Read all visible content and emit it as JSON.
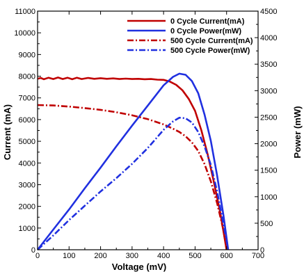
{
  "chart_data": {
    "type": "line",
    "title": "",
    "xlabel": "Voltage (mV)",
    "ylabel": "Current (mA)",
    "y2label": "Power (mW)",
    "xlim": [
      0,
      700
    ],
    "ylim": [
      0,
      11000
    ],
    "y2lim": [
      0,
      4500
    ],
    "x_ticks": [
      0,
      100,
      200,
      300,
      400,
      500,
      600,
      700
    ],
    "y_ticks": [
      0,
      1000,
      2000,
      3000,
      4000,
      5000,
      6000,
      7000,
      8000,
      9000,
      10000,
      11000
    ],
    "y2_ticks": [
      0,
      500,
      1000,
      1500,
      2000,
      2500,
      3000,
      3500,
      4000,
      4500
    ],
    "grid": false,
    "legend_position": "top-right",
    "series": [
      {
        "name": "0 Cycle Current(mA)",
        "axis": "left",
        "color": "#c00000",
        "style": "solid",
        "points": [
          [
            0,
            7880
          ],
          [
            10,
            7920
          ],
          [
            20,
            7860
          ],
          [
            35,
            7930
          ],
          [
            50,
            7870
          ],
          [
            65,
            7940
          ],
          [
            80,
            7870
          ],
          [
            95,
            7930
          ],
          [
            110,
            7860
          ],
          [
            125,
            7930
          ],
          [
            140,
            7870
          ],
          [
            160,
            7920
          ],
          [
            180,
            7880
          ],
          [
            200,
            7910
          ],
          [
            220,
            7880
          ],
          [
            240,
            7900
          ],
          [
            260,
            7870
          ],
          [
            280,
            7890
          ],
          [
            300,
            7870
          ],
          [
            320,
            7880
          ],
          [
            340,
            7860
          ],
          [
            360,
            7870
          ],
          [
            380,
            7840
          ],
          [
            400,
            7830
          ],
          [
            420,
            7750
          ],
          [
            440,
            7600
          ],
          [
            460,
            7350
          ],
          [
            480,
            6950
          ],
          [
            500,
            6400
          ],
          [
            520,
            5500
          ],
          [
            540,
            4400
          ],
          [
            560,
            3100
          ],
          [
            580,
            1700
          ],
          [
            600,
            0
          ]
        ]
      },
      {
        "name": "0 Cycle Power(mW)",
        "axis": "right",
        "color": "#2030e0",
        "style": "solid",
        "points": [
          [
            0,
            0
          ],
          [
            50,
            380
          ],
          [
            100,
            760
          ],
          [
            150,
            1160
          ],
          [
            200,
            1550
          ],
          [
            250,
            1950
          ],
          [
            300,
            2340
          ],
          [
            350,
            2720
          ],
          [
            400,
            3100
          ],
          [
            430,
            3260
          ],
          [
            450,
            3320
          ],
          [
            470,
            3300
          ],
          [
            490,
            3180
          ],
          [
            510,
            2950
          ],
          [
            530,
            2550
          ],
          [
            550,
            2050
          ],
          [
            570,
            1400
          ],
          [
            590,
            650
          ],
          [
            605,
            0
          ]
        ]
      },
      {
        "name": "500 Cycle Current(mA)",
        "axis": "left",
        "color": "#c00000",
        "style": "dashdot",
        "points": [
          [
            0,
            6670
          ],
          [
            50,
            6650
          ],
          [
            100,
            6600
          ],
          [
            150,
            6530
          ],
          [
            200,
            6450
          ],
          [
            250,
            6340
          ],
          [
            300,
            6200
          ],
          [
            350,
            6020
          ],
          [
            400,
            5780
          ],
          [
            430,
            5580
          ],
          [
            450,
            5430
          ],
          [
            470,
            5230
          ],
          [
            490,
            4950
          ],
          [
            510,
            4550
          ],
          [
            530,
            3950
          ],
          [
            550,
            3150
          ],
          [
            570,
            2150
          ],
          [
            590,
            900
          ],
          [
            600,
            0
          ]
        ]
      },
      {
        "name": "500 Cycle Power(mW)",
        "axis": "right",
        "color": "#2030e0",
        "style": "dashdot",
        "points": [
          [
            0,
            0
          ],
          [
            50,
            270
          ],
          [
            100,
            560
          ],
          [
            150,
            830
          ],
          [
            200,
            1100
          ],
          [
            250,
            1350
          ],
          [
            300,
            1620
          ],
          [
            350,
            1920
          ],
          [
            400,
            2260
          ],
          [
            430,
            2420
          ],
          [
            450,
            2490
          ],
          [
            470,
            2480
          ],
          [
            490,
            2400
          ],
          [
            510,
            2220
          ],
          [
            530,
            1950
          ],
          [
            550,
            1600
          ],
          [
            570,
            1100
          ],
          [
            590,
            480
          ],
          [
            605,
            0
          ]
        ]
      }
    ]
  }
}
